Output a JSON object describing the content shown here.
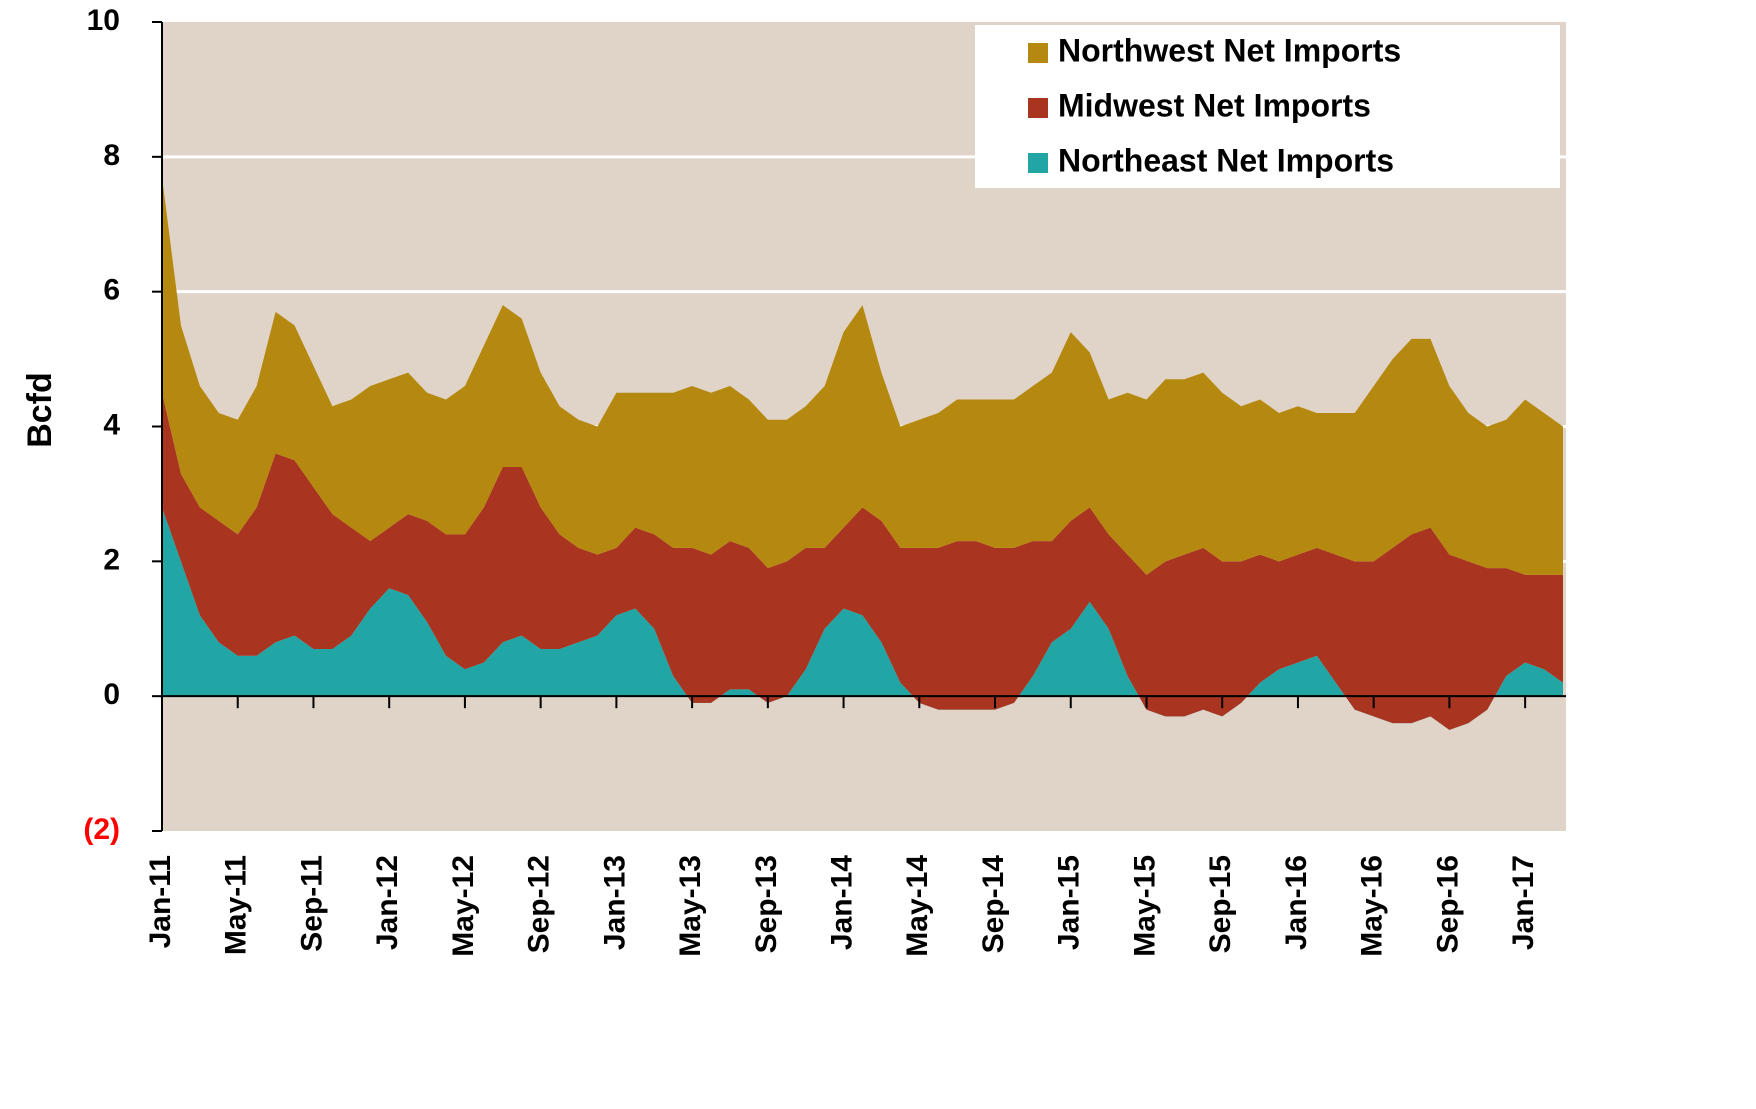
{
  "chart_data": {
    "type": "stacked-area",
    "y_label": "Bcfd",
    "categories": [
      "Jan-11",
      null,
      null,
      null,
      "May-11",
      null,
      null,
      null,
      "Sep-11",
      null,
      null,
      null,
      "Jan-12",
      null,
      null,
      null,
      "May-12",
      null,
      null,
      null,
      "Sep-12",
      null,
      null,
      null,
      "Jan-13",
      null,
      null,
      null,
      "May-13",
      null,
      null,
      null,
      "Sep-13",
      null,
      null,
      null,
      "Jan-14",
      null,
      null,
      null,
      "May-14",
      null,
      null,
      null,
      "Sep-14",
      null,
      null,
      null,
      "Jan-15",
      null,
      null,
      null,
      "May-15",
      null,
      null,
      null,
      "Sep-15",
      null,
      null,
      null,
      "Jan-16",
      null,
      null,
      null,
      "May-16",
      null,
      null,
      null,
      "Sep-16",
      null,
      null,
      null,
      "Jan-17",
      null,
      null
    ],
    "series": [
      {
        "name": "Northeast Net Imports",
        "color": "#22a5a5",
        "values": [
          2.8,
          2.0,
          1.2,
          0.8,
          0.6,
          0.6,
          0.8,
          0.9,
          0.7,
          0.7,
          0.9,
          1.3,
          1.6,
          1.5,
          1.1,
          0.6,
          0.4,
          0.5,
          0.8,
          0.9,
          0.7,
          0.7,
          0.8,
          0.9,
          1.2,
          1.3,
          1.0,
          0.3,
          -0.1,
          -0.1,
          0.1,
          0.1,
          -0.1,
          0,
          0.4,
          1.0,
          1.3,
          1.2,
          0.8,
          0.2,
          -0.1,
          -0.2,
          -0.2,
          -0.2,
          -0.2,
          -0.1,
          0.3,
          0.8,
          1.0,
          1.4,
          1.0,
          0.3,
          -0.2,
          -0.3,
          -0.3,
          -0.2,
          -0.3,
          -0.1,
          0.2,
          0.4,
          0.5,
          0.6,
          0.2,
          -0.2,
          -0.3,
          -0.4,
          -0.4,
          -0.3,
          -0.5,
          -0.4,
          -0.2,
          0.3,
          0.5,
          0.4,
          0.2
        ]
      },
      {
        "name": "Midwest Net Imports",
        "color": "#a93520",
        "values": [
          1.7,
          1.3,
          1.6,
          1.8,
          1.8,
          2.2,
          2.8,
          2.6,
          2.4,
          2.0,
          1.6,
          1.0,
          0.9,
          1.2,
          1.5,
          1.8,
          2.0,
          2.3,
          2.6,
          2.5,
          2.1,
          1.7,
          1.4,
          1.2,
          1.0,
          1.2,
          1.4,
          1.9,
          2.3,
          2.2,
          2.2,
          2.1,
          2.0,
          2.0,
          1.8,
          1.2,
          1.2,
          1.6,
          1.8,
          2.0,
          2.3,
          2.4,
          2.5,
          2.5,
          2.4,
          2.3,
          2.0,
          1.5,
          1.6,
          1.4,
          1.4,
          1.8,
          2.0,
          2.3,
          2.4,
          2.4,
          2.3,
          2.1,
          1.9,
          1.6,
          1.6,
          1.6,
          1.9,
          2.2,
          2.3,
          2.6,
          2.8,
          2.8,
          2.6,
          2.4,
          2.1,
          1.6,
          1.3,
          1.4,
          1.6
        ]
      },
      {
        "name": "Northwest Net Imports",
        "color": "#b5890f",
        "values": [
          3.2,
          2.2,
          1.8,
          1.6,
          1.7,
          1.8,
          2.1,
          2.0,
          1.8,
          1.6,
          1.9,
          2.3,
          2.2,
          2.1,
          1.9,
          2.0,
          2.2,
          2.4,
          2.4,
          2.2,
          2.0,
          1.9,
          1.9,
          1.9,
          2.3,
          2.0,
          2.1,
          2.3,
          2.4,
          2.4,
          2.3,
          2.2,
          2.2,
          2.1,
          2.1,
          2.4,
          2.9,
          3.0,
          2.2,
          1.8,
          1.9,
          2.0,
          2.1,
          2.1,
          2.2,
          2.2,
          2.3,
          2.5,
          2.8,
          2.3,
          2.0,
          2.4,
          2.6,
          2.7,
          2.6,
          2.6,
          2.5,
          2.3,
          2.3,
          2.2,
          2.2,
          2.0,
          2.1,
          2.2,
          2.6,
          2.8,
          2.9,
          2.8,
          2.5,
          2.2,
          2.1,
          2.2,
          2.6,
          2.4,
          2.2
        ]
      }
    ],
    "legend_order": [
      2,
      1,
      0
    ],
    "ylim": [
      -2,
      10
    ],
    "yticks": [
      {
        "value": -2,
        "label": "(2)"
      },
      0,
      2,
      4,
      6,
      8,
      10
    ],
    "negative_tick_color": "#ff0000",
    "plot_background": "#e0d3c8",
    "grid": true,
    "legend": "upper right"
  }
}
